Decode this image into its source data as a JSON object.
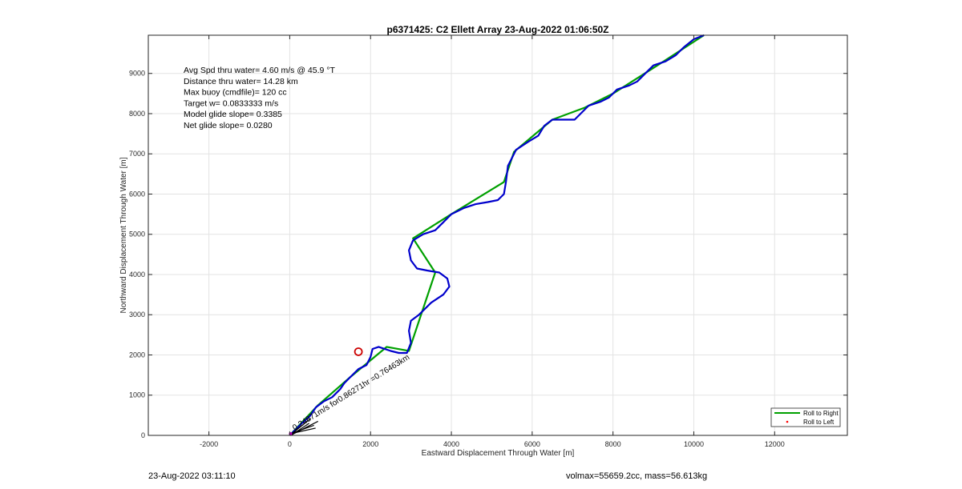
{
  "chart_data": {
    "type": "line",
    "title": "p6371425: C2 Ellett Array 23-Aug-2022 01:06:50Z",
    "xlabel": "Eastward Displacement Through Water [m]",
    "ylabel": "Northward Displacement Through Water [m]",
    "xlim": [
      -3500,
      13800
    ],
    "ylim": [
      0,
      9950
    ],
    "xticks": [
      -2000,
      0,
      2000,
      4000,
      6000,
      8000,
      10000,
      12000
    ],
    "yticks": [
      0,
      1000,
      2000,
      3000,
      4000,
      5000,
      6000,
      7000,
      8000,
      9000
    ],
    "grid": true,
    "legend_position": "bottom-right",
    "series": [
      {
        "name": "Roll to Right",
        "color": "#00a000",
        "points": [
          [
            0,
            0
          ],
          [
            700,
            750
          ],
          [
            1500,
            1450
          ],
          [
            2400,
            2200
          ],
          [
            2950,
            2100
          ],
          [
            3600,
            4050
          ],
          [
            3050,
            4900
          ],
          [
            4000,
            5500
          ],
          [
            5300,
            6300
          ],
          [
            5550,
            7050
          ],
          [
            6500,
            7850
          ],
          [
            7300,
            8150
          ],
          [
            8000,
            8500
          ],
          [
            9100,
            9200
          ],
          [
            10250,
            9950
          ]
        ]
      },
      {
        "name": "Roll to Left",
        "color": "#ff0000",
        "points": []
      },
      {
        "name": "",
        "color": "#0000cc",
        "points": [
          [
            0,
            0
          ],
          [
            150,
            150
          ],
          [
            300,
            300
          ],
          [
            500,
            480
          ],
          [
            650,
            700
          ],
          [
            850,
            850
          ],
          [
            1050,
            950
          ],
          [
            1250,
            1150
          ],
          [
            1350,
            1300
          ],
          [
            1500,
            1450
          ],
          [
            1700,
            1650
          ],
          [
            1900,
            1750
          ],
          [
            2000,
            1950
          ],
          [
            2050,
            2150
          ],
          [
            2200,
            2200
          ],
          [
            2500,
            2100
          ],
          [
            2700,
            2050
          ],
          [
            2900,
            2050
          ],
          [
            3000,
            2300
          ],
          [
            2950,
            2600
          ],
          [
            3000,
            2850
          ],
          [
            3200,
            3000
          ],
          [
            3500,
            3300
          ],
          [
            3800,
            3500
          ],
          [
            3950,
            3700
          ],
          [
            3900,
            3900
          ],
          [
            3700,
            4050
          ],
          [
            3400,
            4100
          ],
          [
            3150,
            4150
          ],
          [
            3000,
            4350
          ],
          [
            2950,
            4600
          ],
          [
            3050,
            4850
          ],
          [
            3300,
            5000
          ],
          [
            3600,
            5100
          ],
          [
            3800,
            5300
          ],
          [
            4000,
            5500
          ],
          [
            4300,
            5650
          ],
          [
            4600,
            5750
          ],
          [
            4900,
            5800
          ],
          [
            5150,
            5850
          ],
          [
            5300,
            6000
          ],
          [
            5350,
            6300
          ],
          [
            5400,
            6700
          ],
          [
            5600,
            7100
          ],
          [
            5900,
            7300
          ],
          [
            6150,
            7450
          ],
          [
            6300,
            7700
          ],
          [
            6500,
            7850
          ],
          [
            6800,
            7850
          ],
          [
            7050,
            7850
          ],
          [
            7200,
            8000
          ],
          [
            7400,
            8200
          ],
          [
            7700,
            8300
          ],
          [
            7900,
            8400
          ],
          [
            8100,
            8600
          ],
          [
            8400,
            8700
          ],
          [
            8600,
            8800
          ],
          [
            8800,
            9000
          ],
          [
            9000,
            9200
          ],
          [
            9300,
            9300
          ],
          [
            9550,
            9450
          ],
          [
            9750,
            9650
          ],
          [
            10000,
            9850
          ],
          [
            10250,
            9950
          ]
        ]
      }
    ],
    "annotations": {
      "stats": [
        "Avg Spd thru water=  4.60 m/s @  45.9 °T",
        "Distance thru water= 14.28 km",
        "Max buoy (cmdfile)= 120 cc",
        "Target w= 0.0833333 m/s",
        "Model glide slope= 0.3385",
        "Net glide slope= 0.0280"
      ],
      "arrow_label": "0.24871m/s for0.86271hr =0.76463km",
      "marker": {
        "x": 1700,
        "y": 2080,
        "color": "#cc0000"
      }
    }
  },
  "footer": {
    "timestamp": "23-Aug-2022 03:11:10",
    "volmax": "volmax=55659.2cc, mass=56.613kg"
  }
}
